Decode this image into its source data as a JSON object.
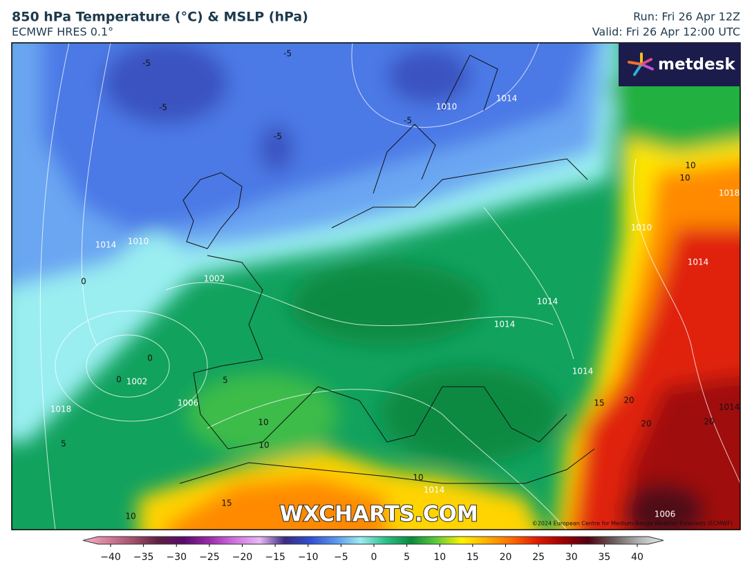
{
  "header": {
    "title": "850 hPa Temperature (°C) & MSLP (hPa)",
    "subtitle": "ECMWF HRES 0.1°",
    "run": "Run: Fri 26 Apr 12Z",
    "valid": "Valid: Fri 26 Apr 12:00 UTC"
  },
  "logo": "metdesk",
  "watermark": "WXCHARTS.COM",
  "copyright": "©2024 European Centre for Medium-Range Weather Forecasts (ECMWF)",
  "map_labels": [
    "-5",
    "-5",
    "-5",
    "-5",
    "-5",
    "1010",
    "1014",
    "1010",
    "1014",
    "1002",
    "0",
    "0",
    "0",
    "1002",
    "1006",
    "1018",
    "5",
    "10",
    "10",
    "15",
    "1014",
    "1014",
    "1014",
    "10",
    "10",
    "1018",
    "1010",
    "1014",
    "15",
    "20",
    "20",
    "20",
    "1014",
    "10",
    "1014",
    "1006",
    "5",
    "10"
  ],
  "colorbar": {
    "colors": [
      "#f6b4c6",
      "#d27e99",
      "#a1506b",
      "#5c2040",
      "#5a0a6a",
      "#9a2aa8",
      "#d070e0",
      "#e8b8f4",
      "#3a2a80",
      "#2f4fd0",
      "#5a94ee",
      "#9cecf2",
      "#2cc088",
      "#0a8a3a",
      "#5ccc3a",
      "#fff200",
      "#ffb000",
      "#ff6a00",
      "#e01a00",
      "#a00000",
      "#500010",
      "#6a5a5a",
      "#b0b0b0",
      "#ececec"
    ],
    "ticks": [
      {
        "value": -40,
        "label": "−40"
      },
      {
        "value": -35,
        "label": "−35"
      },
      {
        "value": -30,
        "label": "−30"
      },
      {
        "value": -25,
        "label": "−25"
      },
      {
        "value": -20,
        "label": "−20"
      },
      {
        "value": -15,
        "label": "−15"
      },
      {
        "value": -10,
        "label": "−10"
      },
      {
        "value": -5,
        "label": "−5"
      },
      0,
      5,
      10,
      15,
      20,
      25,
      30,
      35,
      40
    ]
  }
}
